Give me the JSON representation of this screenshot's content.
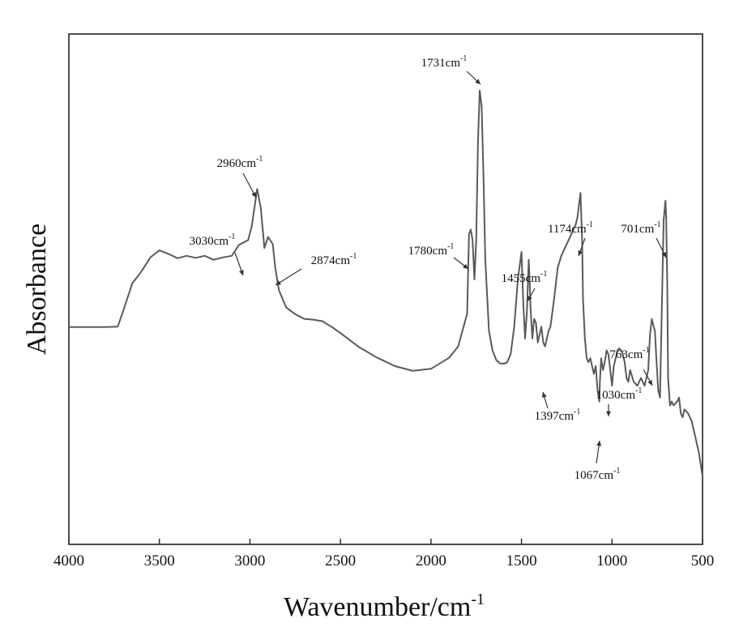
{
  "chart_data": {
    "type": "line",
    "title": "",
    "xlabel": "Wavenumber/cm",
    "xlabel_superscript": "-1",
    "ylabel": "Absorbance",
    "xlim": [
      4000,
      500
    ],
    "x_reversed": true,
    "ylim": [
      0,
      1
    ],
    "grid": false,
    "legend": "none",
    "line_color": "#5a5a5a",
    "x_ticks": [
      {
        "value": 4000,
        "label": "4000"
      },
      {
        "value": 3500,
        "label": "3500"
      },
      {
        "value": 3000,
        "label": "3000"
      },
      {
        "value": 2500,
        "label": "2500"
      },
      {
        "value": 2000,
        "label": "2000"
      },
      {
        "value": 1500,
        "label": "1500"
      },
      {
        "value": 1000,
        "label": "1000"
      },
      {
        "value": 500,
        "label": "500"
      }
    ],
    "series": [
      {
        "x": [
          4000,
          3800,
          3730,
          3700,
          3650,
          3600,
          3550,
          3500,
          3450,
          3400,
          3350,
          3300,
          3250,
          3200,
          3150,
          3100,
          3060,
          3030,
          3010,
          2990,
          2960,
          2940,
          2920,
          2900,
          2874,
          2860,
          2840,
          2800,
          2750,
          2700,
          2650,
          2600,
          2550,
          2500,
          2400,
          2300,
          2200,
          2100,
          2000,
          1900,
          1850,
          1800,
          1790,
          1780,
          1770,
          1760,
          1750,
          1740,
          1731,
          1720,
          1710,
          1700,
          1680,
          1660,
          1640,
          1620,
          1600,
          1580,
          1560,
          1540,
          1520,
          1500,
          1490,
          1480,
          1470,
          1460,
          1455,
          1450,
          1440,
          1430,
          1420,
          1410,
          1400,
          1390,
          1380,
          1370,
          1360,
          1350,
          1340,
          1320,
          1300,
          1280,
          1260,
          1240,
          1220,
          1200,
          1190,
          1180,
          1174,
          1165,
          1160,
          1150,
          1140,
          1130,
          1120,
          1110,
          1100,
          1090,
          1080,
          1070,
          1067,
          1060,
          1050,
          1040,
          1030,
          1020,
          1010,
          1000,
          990,
          980,
          970,
          960,
          950,
          940,
          930,
          920,
          910,
          900,
          880,
          860,
          840,
          820,
          800,
          790,
          780,
          770,
          763,
          755,
          745,
          735,
          725,
          715,
          705,
          701,
          695,
          690,
          680,
          670,
          660,
          650,
          640,
          630,
          620,
          610,
          600,
          580,
          560,
          540,
          520,
          500
        ],
        "y": [
          0.379,
          0.379,
          0.38,
          0.42,
          0.49,
          0.52,
          0.556,
          0.574,
          0.565,
          0.554,
          0.56,
          0.555,
          0.56,
          0.55,
          0.556,
          0.56,
          0.588,
          0.595,
          0.6,
          0.635,
          0.73,
          0.682,
          0.58,
          0.608,
          0.59,
          0.53,
          0.473,
          0.429,
          0.412,
          0.4,
          0.398,
          0.394,
          0.38,
          0.364,
          0.329,
          0.302,
          0.28,
          0.268,
          0.273,
          0.301,
          0.33,
          0.413,
          0.615,
          0.627,
          0.6,
          0.5,
          0.6,
          0.85,
          0.98,
          0.94,
          0.76,
          0.55,
          0.37,
          0.32,
          0.296,
          0.287,
          0.286,
          0.289,
          0.31,
          0.38,
          0.5,
          0.57,
          0.44,
          0.35,
          0.42,
          0.55,
          0.5,
          0.43,
          0.35,
          0.4,
          0.39,
          0.34,
          0.36,
          0.38,
          0.34,
          0.33,
          0.35,
          0.37,
          0.38,
          0.45,
          0.53,
          0.56,
          0.58,
          0.6,
          0.62,
          0.64,
          0.66,
          0.7,
          0.72,
          0.6,
          0.45,
          0.35,
          0.3,
          0.29,
          0.3,
          0.28,
          0.26,
          0.28,
          0.22,
          0.19,
          0.24,
          0.3,
          0.27,
          0.29,
          0.32,
          0.31,
          0.27,
          0.23,
          0.28,
          0.3,
          0.32,
          0.325,
          0.32,
          0.31,
          0.29,
          0.25,
          0.24,
          0.27,
          0.24,
          0.23,
          0.25,
          0.23,
          0.27,
          0.36,
          0.4,
          0.38,
          0.37,
          0.3,
          0.22,
          0.2,
          0.42,
          0.65,
          0.7,
          0.66,
          0.5,
          0.25,
          0.18,
          0.19,
          0.18,
          0.185,
          0.19,
          0.2,
          0.16,
          0.15,
          0.17,
          0.16,
          0.14,
          0.1,
          0.06,
          0.0
        ]
      }
    ],
    "annotations": [
      {
        "text": "2960cm",
        "sup": "-1",
        "x": 2960
      },
      {
        "text": "3030cm",
        "sup": "-1",
        "x": 3030
      },
      {
        "text": "2874cm",
        "sup": "-1",
        "x": 2874
      },
      {
        "text": "1731cm",
        "sup": "-1",
        "x": 1731
      },
      {
        "text": "1780cm",
        "sup": "-1",
        "x": 1780
      },
      {
        "text": "1455cm",
        "sup": "-1",
        "x": 1455
      },
      {
        "text": "1397cm",
        "sup": "-1",
        "x": 1397
      },
      {
        "text": "1174cm",
        "sup": "-1",
        "x": 1174
      },
      {
        "text": "701cm",
        "sup": "-1",
        "x": 701
      },
      {
        "text": "763cm",
        "sup": "-1",
        "x": 763
      },
      {
        "text": "1030cm",
        "sup": "-1",
        "x": 1030
      },
      {
        "text": "1067cm",
        "sup": "-1",
        "x": 1067
      }
    ]
  }
}
